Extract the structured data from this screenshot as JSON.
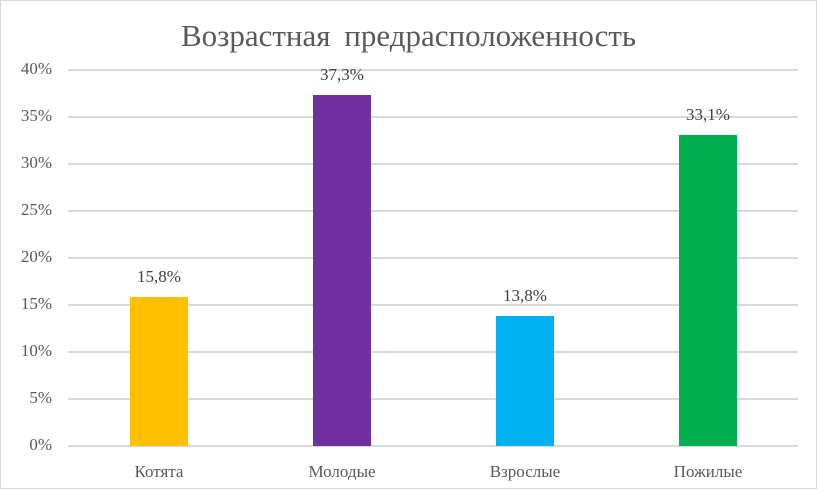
{
  "chart_data": {
    "type": "bar",
    "title": "Возрастная  предрасположенность",
    "categories": [
      "Котята",
      "Молодые",
      "Взрослые",
      "Пожилые"
    ],
    "values": [
      15.8,
      37.3,
      13.8,
      33.1
    ],
    "data_labels": [
      "15,8%",
      "37,3%",
      "13,8%",
      "33,1%"
    ],
    "colors": [
      "#FFC000",
      "#7030A0",
      "#00B0F0",
      "#00B050"
    ],
    "xlabel": "",
    "ylabel": "",
    "ylim": [
      0,
      40
    ],
    "yticks": [
      "0%",
      "5%",
      "10%",
      "15%",
      "20%",
      "25%",
      "30%",
      "35%",
      "40%"
    ],
    "grid": true,
    "legend": "none"
  }
}
